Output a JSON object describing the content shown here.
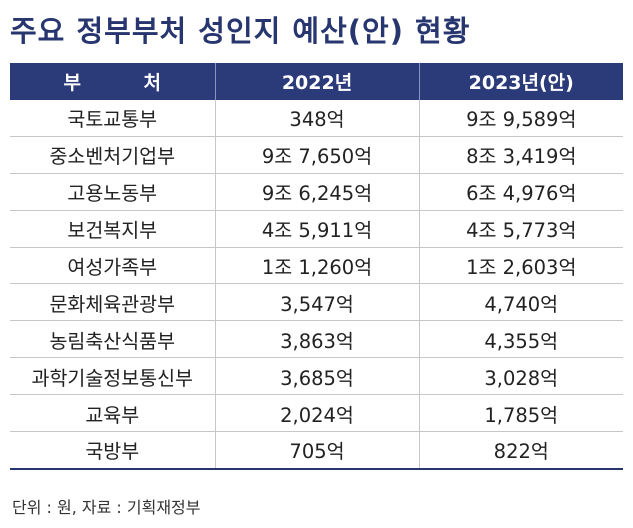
{
  "title": "주요 정부부처 성인지 예산(안) 현황",
  "table": {
    "headers": [
      "부 처",
      "2022년",
      "2023년(안)"
    ],
    "rows": [
      [
        "국토교통부",
        "348억",
        "9조 9,589억"
      ],
      [
        "중소벤처기업부",
        "9조 7,650억",
        "8조 3,419억"
      ],
      [
        "고용노동부",
        "9조 6,245억",
        "6조 4,976억"
      ],
      [
        "보건복지부",
        "4조 5,911억",
        "4조 5,773억"
      ],
      [
        "여성가족부",
        "1조 1,260억",
        "1조 2,603억"
      ],
      [
        "문화체육관광부",
        "3,547억",
        "4,740억"
      ],
      [
        "농림축산식품부",
        "3,863억",
        "4,355억"
      ],
      [
        "과학기술정보통신부",
        "3,685억",
        "3,028억"
      ],
      [
        "교육부",
        "2,024억",
        "1,785억"
      ],
      [
        "국방부",
        "705억",
        "822억"
      ]
    ]
  },
  "footer": "단위 : 원, 자료 : 기획재정부",
  "colors": {
    "title": "#27366f",
    "header_background": "#2b3a78",
    "header_text": "#ffffff"
  }
}
